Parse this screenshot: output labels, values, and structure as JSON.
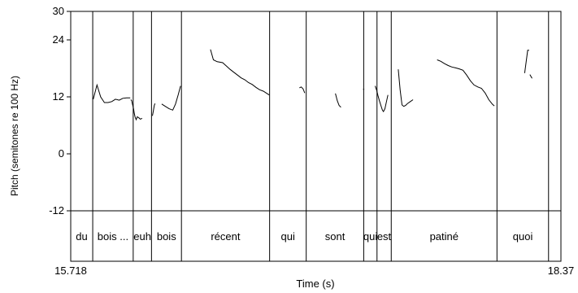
{
  "chart_data": {
    "type": "line",
    "title": "",
    "xlabel": "Time (s)",
    "ylabel": "Pitch (semitones re 100 Hz)",
    "xlim": [
      15.718,
      18.37
    ],
    "ylim": [
      -12,
      30
    ],
    "x_tick_labels": [
      "15.718",
      "18.37"
    ],
    "y_ticks": [
      -12,
      0,
      12,
      24,
      30
    ],
    "y_tick_labels": [
      "-12",
      "0",
      "12",
      "24",
      "30"
    ],
    "grid": false,
    "legend": "none",
    "colors": {
      "line": "#000000",
      "axis": "#000000",
      "background": "#ffffff"
    },
    "boundaries": [
      15.718,
      15.837,
      16.056,
      16.155,
      16.317,
      16.794,
      16.992,
      17.303,
      17.375,
      17.452,
      18.024,
      18.303
    ],
    "words": [
      {
        "text": "du",
        "start": 15.718,
        "end": 15.837
      },
      {
        "text": "bois ...",
        "start": 15.837,
        "end": 16.056
      },
      {
        "text": "euh",
        "start": 16.056,
        "end": 16.155
      },
      {
        "text": "bois",
        "start": 16.155,
        "end": 16.317
      },
      {
        "text": "récent",
        "start": 16.317,
        "end": 16.794
      },
      {
        "text": "qui",
        "start": 16.794,
        "end": 16.992
      },
      {
        "text": "sont",
        "start": 16.992,
        "end": 17.303
      },
      {
        "text": "qui",
        "start": 17.303,
        "end": 17.375
      },
      {
        "text": "est",
        "start": 17.375,
        "end": 17.452
      },
      {
        "text": "patiné",
        "start": 17.452,
        "end": 18.024
      },
      {
        "text": "quoi",
        "start": 18.024,
        "end": 18.303
      }
    ],
    "series": [
      {
        "x": [
          15.84,
          15.86,
          15.88,
          15.9,
          15.92,
          15.94,
          15.96,
          15.98,
          16.0,
          16.02,
          16.04
        ],
        "y": [
          11.5,
          14.5,
          12.0,
          10.8,
          10.8,
          11.0,
          11.5,
          11.3,
          11.7,
          11.8,
          11.8
        ]
      },
      {
        "x": [
          16.043,
          16.048,
          16.052,
          16.058,
          16.062,
          16.066,
          16.072,
          16.078,
          16.086,
          16.095,
          16.1,
          16.104
        ],
        "y": [
          11.4,
          11.2,
          10.5,
          9.5,
          8.5,
          7.8,
          7.2,
          7.8,
          7.6,
          7.3,
          7.4,
          7.5
        ]
      },
      {
        "x": [
          16.16,
          16.165,
          16.17,
          16.174
        ],
        "y": [
          8.0,
          9.0,
          10.2,
          10.6
        ]
      },
      {
        "x": [
          16.21,
          16.23,
          16.25,
          16.27,
          16.285,
          16.3,
          16.312
        ],
        "y": [
          10.5,
          10.0,
          9.5,
          9.2,
          10.5,
          12.5,
          14.3
        ]
      },
      {
        "x": [
          16.474,
          16.49,
          16.51,
          16.54,
          16.56,
          16.58,
          16.6,
          16.62,
          16.64,
          16.66,
          16.68,
          16.7,
          16.72,
          16.74,
          16.76,
          16.78,
          16.792
        ],
        "y": [
          22.0,
          19.8,
          19.4,
          19.2,
          18.5,
          17.8,
          17.2,
          16.6,
          16.0,
          15.6,
          15.0,
          14.6,
          14.0,
          13.5,
          13.2,
          12.7,
          12.4
        ]
      },
      {
        "x": [
          16.955,
          16.965,
          16.975,
          16.984
        ],
        "y": [
          13.9,
          14.1,
          13.7,
          12.8
        ]
      },
      {
        "x": [
          17.15,
          17.16,
          17.17,
          17.18
        ],
        "y": [
          12.7,
          11.2,
          10.2,
          9.8
        ]
      },
      {
        "x": [
          17.3,
          17.306
        ],
        "y": [
          13.6,
          13.6
        ]
      },
      {
        "x": [
          17.365,
          17.373,
          17.38,
          17.388,
          17.396,
          17.404,
          17.41,
          17.418,
          17.426,
          17.434
        ],
        "y": [
          14.3,
          13.4,
          12.3,
          11.2,
          10.2,
          9.2,
          8.9,
          9.5,
          11.0,
          12.4
        ]
      },
      {
        "x": [
          17.49,
          17.5,
          17.51,
          17.52,
          17.53,
          17.54,
          17.555,
          17.57
        ],
        "y": [
          17.8,
          13.5,
          10.3,
          10.0,
          10.2,
          10.6,
          11.0,
          11.4
        ]
      },
      {
        "x": [
          17.7,
          17.72,
          17.74,
          17.76,
          17.78,
          17.8,
          17.82,
          17.84,
          17.86,
          17.88,
          17.9,
          17.92,
          17.94,
          17.96,
          17.98,
          18.0,
          18.01
        ],
        "y": [
          19.8,
          19.5,
          19.0,
          18.6,
          18.3,
          18.1,
          17.9,
          17.6,
          16.6,
          15.4,
          14.5,
          14.1,
          13.8,
          12.8,
          11.4,
          10.4,
          10.1
        ]
      },
      {
        "x": [
          18.174,
          18.19,
          18.198
        ],
        "y": [
          17.0,
          21.8,
          21.8
        ]
      },
      {
        "x": [
          18.202,
          18.214
        ],
        "y": [
          16.7,
          15.9
        ]
      }
    ]
  }
}
